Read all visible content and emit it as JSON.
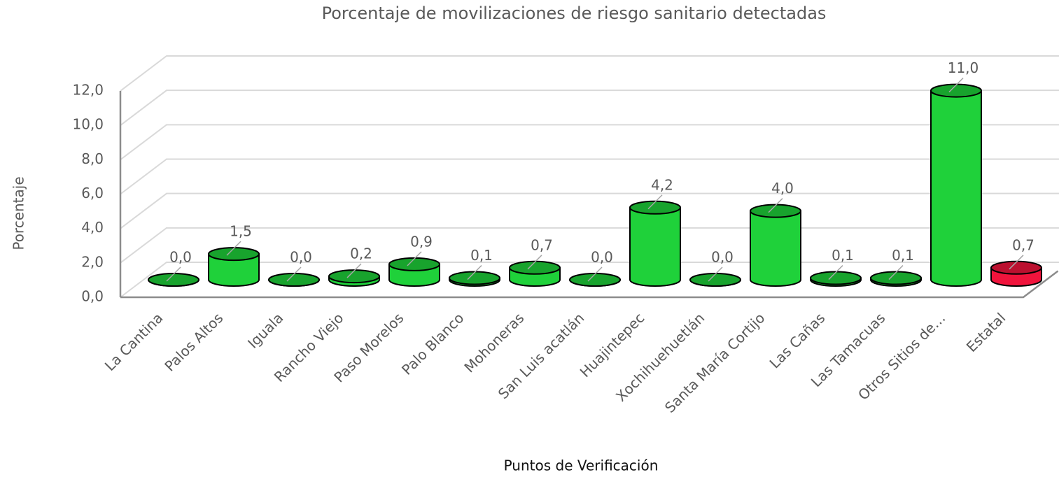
{
  "chart_data": {
    "type": "bar3d",
    "title": "Porcentaje de movilizaciones de riesgo sanitario detectadas",
    "x_label": "Puntos de Verificación",
    "y_label": "Porcentaje",
    "categories": [
      "La Cantina",
      "Palos Altos",
      "Iguala",
      "Rancho Viejo",
      "Paso Morelos",
      "Palo Blanco",
      "Mohoneras",
      "San Luis acatlán",
      "Huajintepec",
      "Xochihuehuetlán",
      "Santa María Cortijo",
      "Las Cañas",
      "Las Tamacuas",
      "Otros Sitios de…",
      "Estatal"
    ],
    "values": [
      0.0,
      1.5,
      0.0,
      0.2,
      0.9,
      0.1,
      0.7,
      0.0,
      4.2,
      0.0,
      4.0,
      0.1,
      0.1,
      11.0,
      0.7
    ],
    "value_labels": [
      "0,0",
      "1,5",
      "0,0",
      "0,2",
      "0,9",
      "0,1",
      "0,7",
      "0,0",
      "4,2",
      "0,0",
      "4,0",
      "0,1",
      "0,1",
      "11,0",
      "0,7"
    ],
    "colors": [
      "#1fd13a",
      "#1fd13a",
      "#1fd13a",
      "#1fd13a",
      "#1fd13a",
      "#1fd13a",
      "#1fd13a",
      "#1fd13a",
      "#1fd13a",
      "#1fd13a",
      "#1fd13a",
      "#1fd13a",
      "#1fd13a",
      "#1fd13a",
      "#f0143c"
    ],
    "ylim": [
      0,
      12
    ],
    "yticks": [
      {
        "value": 0,
        "label": "0,0"
      },
      {
        "value": 2,
        "label": "2,0"
      },
      {
        "value": 4,
        "label": "4,0"
      },
      {
        "value": 6,
        "label": "6,0"
      },
      {
        "value": 8,
        "label": "8,0"
      },
      {
        "value": 10,
        "label": "10,0"
      },
      {
        "value": 12,
        "label": "12,0"
      }
    ],
    "grid": true
  }
}
